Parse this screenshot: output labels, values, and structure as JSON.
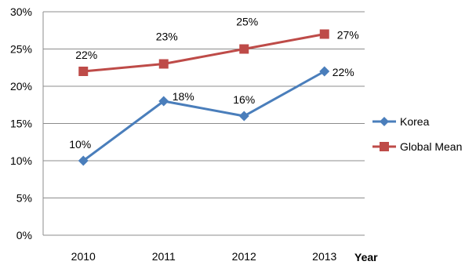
{
  "chart_data": {
    "type": "line",
    "categories": [
      "2010",
      "2011",
      "2012",
      "2013"
    ],
    "series": [
      {
        "name": "Korea",
        "values": [
          10,
          18,
          16,
          22
        ],
        "labels": [
          "10%",
          "18%",
          "16%",
          "22%"
        ],
        "color": "#4a7ebb",
        "marker": "diamond"
      },
      {
        "name": "Global Mean",
        "values": [
          22,
          23,
          25,
          27
        ],
        "labels": [
          "22%",
          "23%",
          "25%",
          "27%"
        ],
        "color": "#be4b48",
        "marker": "square"
      }
    ],
    "xlabel": "Year",
    "ylabel": "",
    "ylim": [
      0,
      30
    ],
    "yticks": [
      0,
      5,
      10,
      15,
      20,
      25,
      30
    ],
    "ytick_labels": [
      "0%",
      "5%",
      "10%",
      "15%",
      "20%",
      "25%",
      "30%"
    ],
    "grid": "horizontal",
    "legend_position": "right"
  }
}
